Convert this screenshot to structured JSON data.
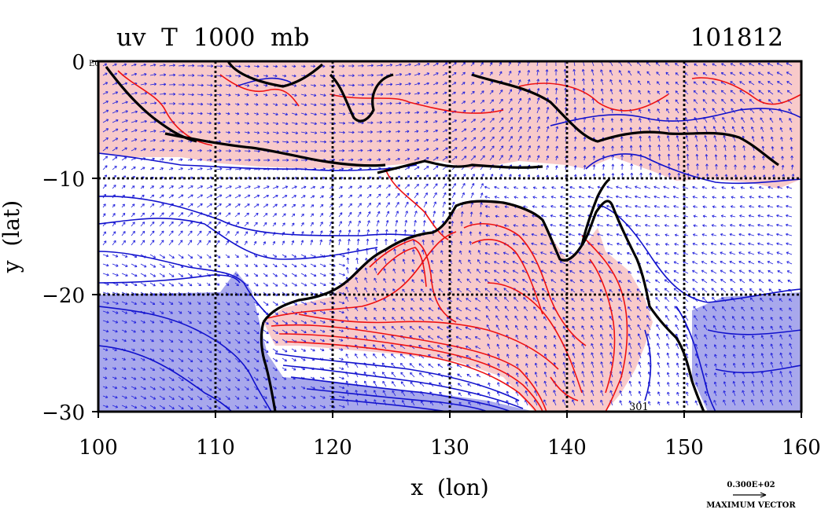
{
  "title": "uv  T  1000  mb",
  "date": "101812",
  "corner_tag": "E0",
  "xlabel": "x  (lon)",
  "ylabel": "y  (lat)",
  "x_ticks": [
    "100",
    "110",
    "120",
    "130",
    "140",
    "150",
    "160"
  ],
  "y_ticks": [
    "0",
    "−10",
    "−20",
    "−30"
  ],
  "vector_legend": {
    "magnitude": "0.300E+02",
    "caption": "MAXIMUM VECTOR"
  },
  "contour_label": "301",
  "colors": {
    "warm_fill": "#f8caca",
    "cold_fill": "#a8a8ec",
    "warm_line": "#ee1111",
    "cold_line": "#1111cc",
    "coast": "#000000",
    "vector": "#2222dd"
  },
  "map": {
    "x_range": [
      100,
      160
    ],
    "y_range": [
      -30,
      0
    ],
    "grid_step_x": 10,
    "grid_step_y": 10,
    "grid": true
  }
}
